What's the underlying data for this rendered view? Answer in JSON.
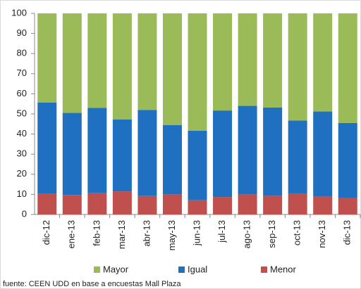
{
  "chart_data": {
    "type": "stacked_bar",
    "categories": [
      "dic-12",
      "ene-13",
      "feb-13",
      "mar-13",
      "abr-13",
      "may-13",
      "jun-13",
      "jul-13",
      "ago-13",
      "sep-13",
      "oct-13",
      "nov-13",
      "dic-13"
    ],
    "series": [
      {
        "name": "Menor",
        "color": "#c0504d",
        "values": [
          10.2,
          9.7,
          10.6,
          11.5,
          9.2,
          10,
          7.1,
          8.7,
          10,
          9.3,
          10.5,
          8.8,
          8.2
        ]
      },
      {
        "name": "Igual",
        "color": "#1f70c1",
        "values": [
          45.5,
          40.8,
          42.4,
          35.7,
          42.8,
          34.5,
          34.6,
          43.0,
          44.0,
          43.9,
          36.2,
          42.4,
          37.3
        ]
      },
      {
        "name": "Mayor",
        "color": "#9bbb59",
        "values": [
          44.3,
          49.5,
          47,
          52.8,
          48,
          55.5,
          58.3,
          48.3,
          46,
          46.8,
          53.3,
          48.8,
          54.5
        ]
      }
    ],
    "ylim": [
      0,
      100
    ],
    "yticks": [
      0,
      10,
      20,
      30,
      40,
      50,
      60,
      70,
      80,
      90,
      100
    ],
    "source": "fuente: CEEN UDD en base a encuestas Mall Plaza"
  }
}
